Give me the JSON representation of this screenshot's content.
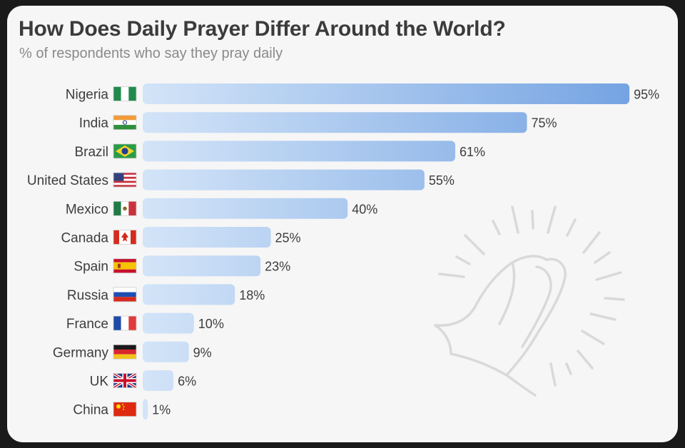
{
  "header": {
    "title": "How Does Daily Prayer Differ Around the World?",
    "subtitle": "% of respondents who say they pray daily"
  },
  "icons": {
    "decoration": "praying-hands-icon",
    "flags": [
      "nigeria-flag-icon",
      "india-flag-icon",
      "brazil-flag-icon",
      "united-states-flag-icon",
      "mexico-flag-icon",
      "canada-flag-icon",
      "spain-flag-icon",
      "russia-flag-icon",
      "france-flag-icon",
      "germany-flag-icon",
      "uk-flag-icon",
      "china-flag-icon"
    ]
  },
  "colors": {
    "bar_light": "#d3e4f8",
    "bar_dark": "#78a6e3",
    "background": "#f6f6f6",
    "text": "#3d3d3d"
  },
  "chart_data": {
    "type": "bar",
    "orientation": "horizontal",
    "title": "How Does Daily Prayer Differ Around the World?",
    "subtitle": "% of respondents who say they pray daily",
    "categories": [
      "Nigeria",
      "India",
      "Brazil",
      "United States",
      "Mexico",
      "Canada",
      "Spain",
      "Russia",
      "France",
      "Germany",
      "UK",
      "China"
    ],
    "values": [
      95,
      75,
      61,
      55,
      40,
      25,
      23,
      18,
      10,
      9,
      6,
      1
    ],
    "value_labels": [
      "95%",
      "75%",
      "61%",
      "55%",
      "40%",
      "25%",
      "23%",
      "18%",
      "10%",
      "9%",
      "6%",
      "1%"
    ],
    "xlim": [
      0,
      100
    ],
    "grid": false,
    "legend": "none"
  }
}
